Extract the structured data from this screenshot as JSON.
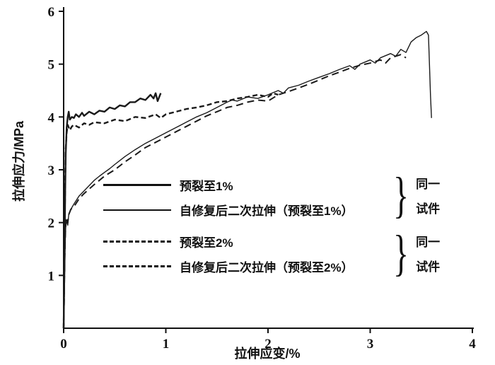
{
  "chart_data": {
    "type": "line",
    "title": "",
    "xlabel": "拉伸应变/%",
    "ylabel": "拉伸应力/MPa",
    "xlim": [
      0,
      4
    ],
    "ylim": [
      0,
      6
    ],
    "x_ticks": [
      0,
      1,
      2,
      3,
      4
    ],
    "y_ticks": [
      1,
      2,
      3,
      4,
      5,
      6
    ],
    "grid": false,
    "legend_position": "inside-center-left",
    "line_color": "#1a1a1a",
    "series": [
      {
        "name": "预裂至1%",
        "style": "solid",
        "thickness": "thick",
        "stroke_width": 2.4,
        "dash": "",
        "points": [
          [
            0,
            0
          ],
          [
            0.01,
            1.5
          ],
          [
            0.015,
            2.6
          ],
          [
            0.02,
            3.3
          ],
          [
            0.03,
            3.8
          ],
          [
            0.04,
            4.0
          ],
          [
            0.05,
            4.1
          ],
          [
            0.06,
            3.95
          ],
          [
            0.08,
            4.0
          ],
          [
            0.1,
            3.98
          ],
          [
            0.12,
            4.05
          ],
          [
            0.15,
            4.0
          ],
          [
            0.18,
            4.08
          ],
          [
            0.2,
            4.02
          ],
          [
            0.25,
            4.1
          ],
          [
            0.3,
            4.05
          ],
          [
            0.35,
            4.12
          ],
          [
            0.4,
            4.1
          ],
          [
            0.45,
            4.18
          ],
          [
            0.5,
            4.15
          ],
          [
            0.55,
            4.22
          ],
          [
            0.6,
            4.2
          ],
          [
            0.65,
            4.28
          ],
          [
            0.7,
            4.28
          ],
          [
            0.75,
            4.35
          ],
          [
            0.8,
            4.32
          ],
          [
            0.85,
            4.42
          ],
          [
            0.88,
            4.35
          ],
          [
            0.9,
            4.45
          ],
          [
            0.92,
            4.3
          ],
          [
            0.95,
            4.45
          ]
        ]
      },
      {
        "name": "自修复后二次拉伸（预裂至1%）",
        "style": "solid",
        "thickness": "thin",
        "stroke_width": 1.4,
        "dash": "",
        "points": [
          [
            0,
            0
          ],
          [
            0.005,
            0.4
          ],
          [
            0.01,
            1.0
          ],
          [
            0.015,
            1.6
          ],
          [
            0.02,
            1.9
          ],
          [
            0.03,
            2.05
          ],
          [
            0.04,
            1.95
          ],
          [
            0.05,
            2.15
          ],
          [
            0.07,
            2.25
          ],
          [
            0.1,
            2.35
          ],
          [
            0.15,
            2.5
          ],
          [
            0.2,
            2.6
          ],
          [
            0.25,
            2.7
          ],
          [
            0.3,
            2.8
          ],
          [
            0.35,
            2.88
          ],
          [
            0.4,
            2.95
          ],
          [
            0.45,
            3.02
          ],
          [
            0.5,
            3.1
          ],
          [
            0.6,
            3.25
          ],
          [
            0.7,
            3.38
          ],
          [
            0.8,
            3.5
          ],
          [
            0.9,
            3.6
          ],
          [
            1.0,
            3.7
          ],
          [
            1.1,
            3.8
          ],
          [
            1.2,
            3.9
          ],
          [
            1.3,
            4.0
          ],
          [
            1.4,
            4.08
          ],
          [
            1.5,
            4.18
          ],
          [
            1.6,
            4.28
          ],
          [
            1.65,
            4.32
          ],
          [
            1.7,
            4.3
          ],
          [
            1.8,
            4.38
          ],
          [
            1.9,
            4.35
          ],
          [
            2.0,
            4.42
          ],
          [
            2.1,
            4.5
          ],
          [
            2.15,
            4.45
          ],
          [
            2.2,
            4.55
          ],
          [
            2.3,
            4.6
          ],
          [
            2.4,
            4.68
          ],
          [
            2.5,
            4.75
          ],
          [
            2.6,
            4.82
          ],
          [
            2.7,
            4.9
          ],
          [
            2.8,
            4.97
          ],
          [
            2.85,
            4.9
          ],
          [
            2.9,
            5.0
          ],
          [
            3.0,
            5.08
          ],
          [
            3.05,
            5.02
          ],
          [
            3.1,
            5.12
          ],
          [
            3.2,
            5.2
          ],
          [
            3.25,
            5.15
          ],
          [
            3.3,
            5.28
          ],
          [
            3.35,
            5.22
          ],
          [
            3.4,
            5.42
          ],
          [
            3.45,
            5.5
          ],
          [
            3.5,
            5.55
          ],
          [
            3.55,
            5.62
          ],
          [
            3.57,
            5.55
          ],
          [
            3.58,
            5.0
          ],
          [
            3.59,
            4.4
          ],
          [
            3.6,
            3.98
          ]
        ]
      },
      {
        "name": "预裂至2%",
        "style": "dashed",
        "thickness": "thick",
        "stroke_width": 2.4,
        "dash": "7 4",
        "points": [
          [
            0,
            0
          ],
          [
            0.01,
            1.8
          ],
          [
            0.015,
            2.8
          ],
          [
            0.02,
            3.4
          ],
          [
            0.03,
            3.7
          ],
          [
            0.04,
            3.85
          ],
          [
            0.06,
            3.75
          ],
          [
            0.08,
            3.82
          ],
          [
            0.1,
            3.85
          ],
          [
            0.15,
            3.8
          ],
          [
            0.2,
            3.88
          ],
          [
            0.25,
            3.85
          ],
          [
            0.3,
            3.9
          ],
          [
            0.4,
            3.88
          ],
          [
            0.5,
            3.95
          ],
          [
            0.6,
            3.92
          ],
          [
            0.7,
            4.0
          ],
          [
            0.8,
            3.98
          ],
          [
            0.9,
            4.05
          ],
          [
            0.95,
            3.98
          ],
          [
            1.0,
            4.05
          ],
          [
            1.1,
            4.1
          ],
          [
            1.2,
            4.15
          ],
          [
            1.3,
            4.18
          ],
          [
            1.4,
            4.22
          ],
          [
            1.5,
            4.28
          ],
          [
            1.6,
            4.3
          ],
          [
            1.7,
            4.35
          ],
          [
            1.8,
            4.38
          ],
          [
            1.9,
            4.42
          ],
          [
            2.0,
            4.38
          ],
          [
            2.05,
            4.45
          ],
          [
            2.1,
            4.42
          ]
        ]
      },
      {
        "name": "自修复后二次拉伸（预裂至2%）",
        "style": "dashed",
        "thickness": "medium",
        "stroke_width": 2.0,
        "dash": "10 6",
        "points": [
          [
            0,
            0
          ],
          [
            0.005,
            0.5
          ],
          [
            0.01,
            1.2
          ],
          [
            0.015,
            1.7
          ],
          [
            0.02,
            1.95
          ],
          [
            0.03,
            2.1
          ],
          [
            0.04,
            2.0
          ],
          [
            0.05,
            2.15
          ],
          [
            0.07,
            2.25
          ],
          [
            0.1,
            2.3
          ],
          [
            0.15,
            2.45
          ],
          [
            0.2,
            2.55
          ],
          [
            0.3,
            2.72
          ],
          [
            0.4,
            2.88
          ],
          [
            0.5,
            3.0
          ],
          [
            0.6,
            3.15
          ],
          [
            0.7,
            3.28
          ],
          [
            0.8,
            3.42
          ],
          [
            0.9,
            3.52
          ],
          [
            1.0,
            3.62
          ],
          [
            1.1,
            3.72
          ],
          [
            1.2,
            3.82
          ],
          [
            1.3,
            3.92
          ],
          [
            1.4,
            4.02
          ],
          [
            1.5,
            4.1
          ],
          [
            1.6,
            4.18
          ],
          [
            1.7,
            4.22
          ],
          [
            1.8,
            4.28
          ],
          [
            1.9,
            4.32
          ],
          [
            2.0,
            4.3
          ],
          [
            2.1,
            4.42
          ],
          [
            2.2,
            4.48
          ],
          [
            2.3,
            4.55
          ],
          [
            2.4,
            4.62
          ],
          [
            2.5,
            4.7
          ],
          [
            2.6,
            4.78
          ],
          [
            2.7,
            4.85
          ],
          [
            2.8,
            4.92
          ],
          [
            2.9,
            4.98
          ],
          [
            3.0,
            5.02
          ],
          [
            3.1,
            5.08
          ],
          [
            3.15,
            5.02
          ],
          [
            3.2,
            5.12
          ],
          [
            3.3,
            5.18
          ],
          [
            3.35,
            5.12
          ]
        ]
      }
    ],
    "annotations": [
      {
        "group": "series-1-2",
        "lines": [
          "同一",
          "试件"
        ]
      },
      {
        "group": "series-3-4",
        "lines": [
          "同一",
          "试件"
        ]
      }
    ]
  }
}
